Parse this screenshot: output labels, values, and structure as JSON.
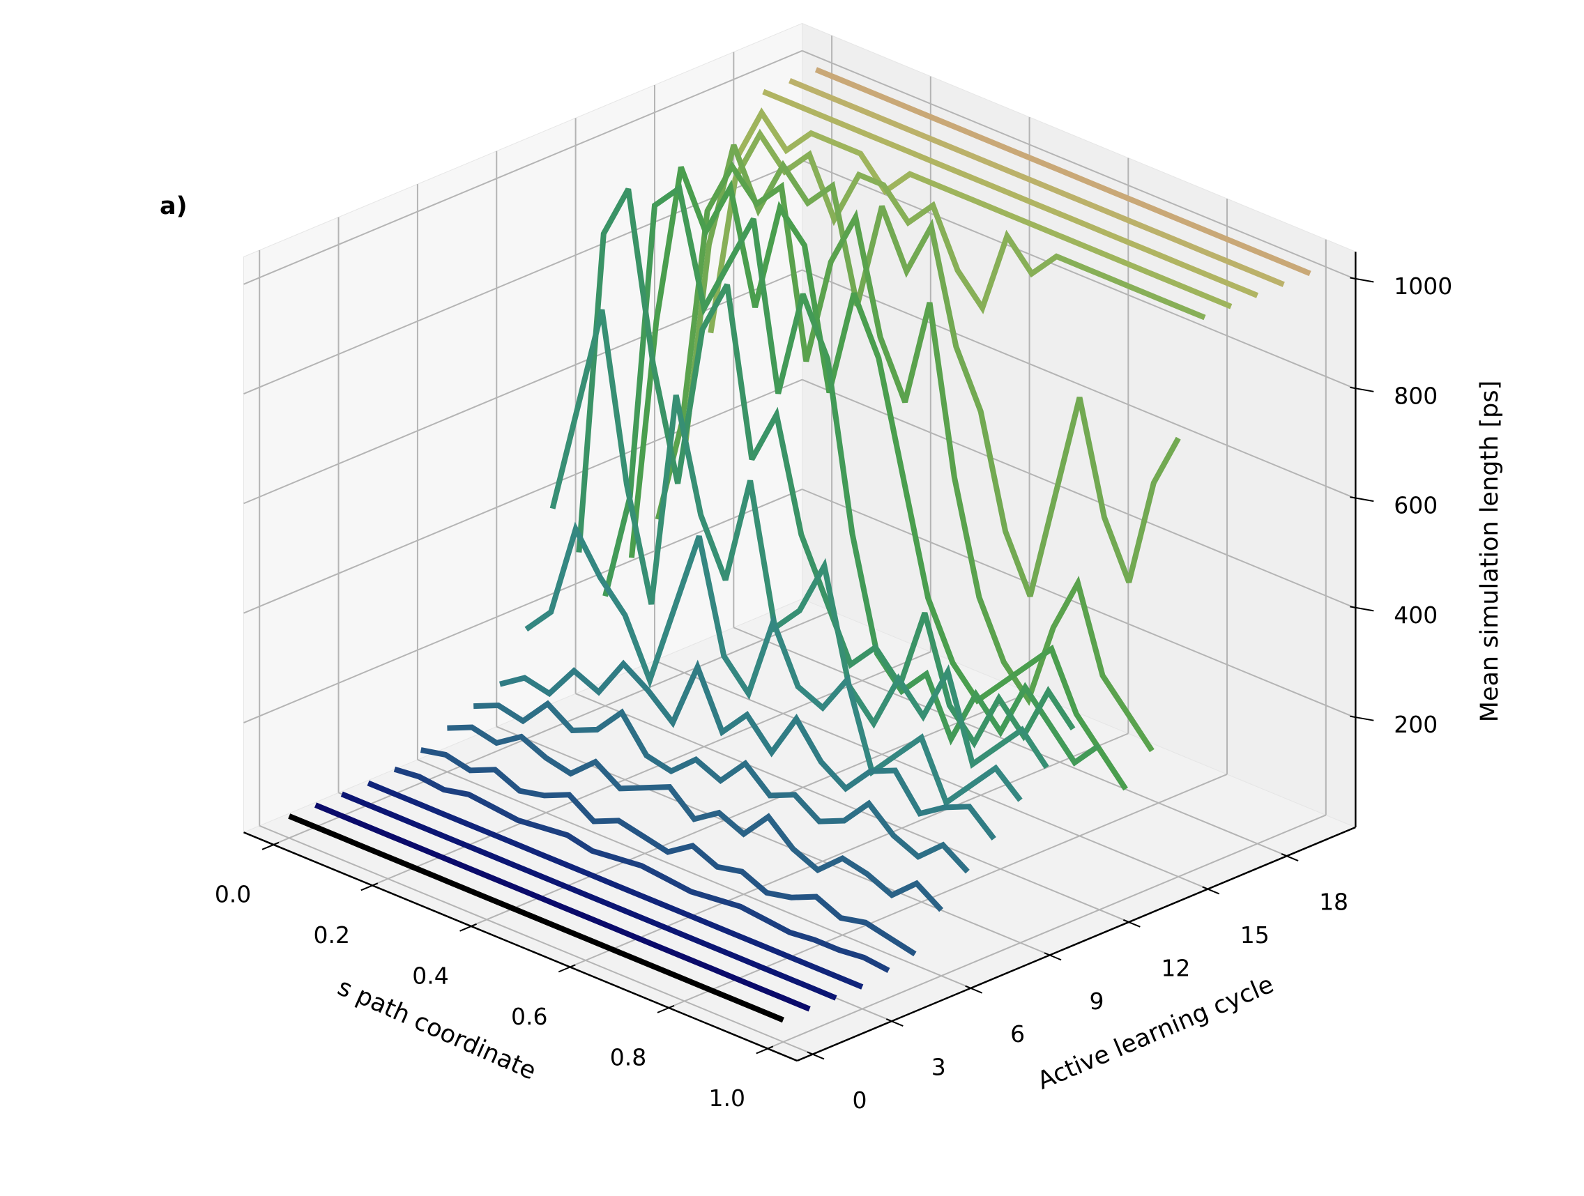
{
  "chart_data": {
    "type": "line3d",
    "panel_label": "a)",
    "xlabel": "s path coordinate",
    "ylabel": "Active learning cycle",
    "zlabel": "Mean simulation length [ps]",
    "xlim": [
      -0.06,
      1.06
    ],
    "ylim": [
      -0.6,
      20.6
    ],
    "zlim": [
      0,
      1050
    ],
    "xticks": [
      {
        "value": 0,
        "label": "0.0"
      },
      0.2,
      0.4,
      0.6,
      0.8,
      {
        "value": 1,
        "label": "1.0"
      }
    ],
    "yticks": [
      0,
      3,
      6,
      9,
      12,
      15,
      18
    ],
    "zticks": [
      200,
      400,
      600,
      800,
      1000
    ],
    "grid": true,
    "x": [
      0,
      0.05,
      0.1,
      0.15,
      0.2,
      0.25,
      0.3,
      0.35,
      0.4,
      0.45,
      0.5,
      0.55,
      0.6,
      0.65,
      0.7,
      0.75,
      0.8,
      0.85,
      0.9,
      0.95,
      1
    ],
    "cycles": [
      0,
      1,
      2,
      3,
      4,
      5,
      6,
      7,
      8,
      9,
      10,
      11,
      12,
      13,
      14,
      15,
      16,
      17,
      18,
      19,
      20
    ],
    "series": [
      {
        "color": "#000000",
        "values": [
          40,
          40,
          40,
          40,
          40,
          40,
          40,
          40,
          40,
          40,
          40,
          40,
          40,
          40,
          40,
          40,
          40,
          40,
          40,
          40,
          40
        ]
      },
      {
        "color": "#0a0a6a",
        "values": [
          40,
          40,
          40,
          40,
          40,
          40,
          40,
          40,
          40,
          40,
          40,
          40,
          40,
          40,
          40,
          40,
          40,
          40,
          40,
          40,
          40
        ]
      },
      {
        "color": "#0b1573",
        "values": [
          40,
          40,
          40,
          40,
          40,
          40,
          40,
          40,
          40,
          40,
          40,
          40,
          40,
          40,
          40,
          40,
          40,
          40,
          40,
          40,
          40
        ]
      },
      {
        "color": "#10247a",
        "values": [
          40,
          40,
          40,
          40,
          40,
          40,
          40,
          40,
          40,
          40,
          40,
          40,
          40,
          40,
          40,
          40,
          40,
          40,
          40,
          40,
          40
        ]
      },
      {
        "color": "#1c3f80",
        "values": [
          45,
          50,
          45,
          55,
          50,
          45,
          50,
          55,
          45,
          50,
          55,
          50,
          45,
          50,
          55,
          50,
          45,
          50,
          50,
          55,
          50
        ]
      },
      {
        "color": "#245484",
        "values": [
          60,
          70,
          60,
          80,
          60,
          70,
          90,
          60,
          80,
          70,
          60,
          90,
          70,
          80,
          60,
          70,
          90,
          70,
          80,
          70,
          60
        ]
      },
      {
        "color": "#2a6286",
        "values": [
          80,
          100,
          90,
          120,
          100,
          90,
          130,
          100,
          120,
          140,
          100,
          130,
          110,
          160,
          120,
          100,
          140,
          130,
          110,
          150,
          120
        ]
      },
      {
        "color": "#2d6f86",
        "values": [
          100,
          120,
          110,
          160,
          130,
          150,
          200,
          140,
          130,
          170,
          150,
          200,
          160,
          180,
          150,
          170,
          220,
          180,
          160,
          200,
          170
        ]
      },
      {
        "color": "#307c84",
        "values": [
          120,
          150,
          140,
          200,
          180,
          250,
          220,
          180,
          300,
          200,
          250,
          200,
          280,
          220,
          190,
          240,
          260,
          200,
          230,
          250,
          210
        ]
      },
      {
        "color": "#348781",
        "values": [
          200,
          250,
          420,
          350,
          300,
          200,
          350,
          500,
          300,
          250,
          400,
          300,
          280,
          350,
          200,
          250,
          300,
          200,
          250,
          300,
          260
        ]
      },
      {
        "color": "#378f74",
        "values": [
          400,
          600,
          800,
          500,
          300,
          700,
          500,
          400,
          600,
          350,
          400,
          500,
          300,
          250,
          350,
          300,
          400,
          250,
          300,
          350,
          300
        ]
      },
      {
        "color": "#3a9366",
        "values": [
          300,
          900,
          1000,
          700,
          500,
          800,
          900,
          600,
          700,
          500,
          400,
          300,
          350,
          300,
          450,
          300,
          250,
          350,
          300,
          400,
          350
        ]
      },
      {
        "color": "#429a57",
        "values": [
          200,
          400,
          950,
          1000,
          800,
          900,
          1000,
          700,
          900,
          800,
          500,
          300,
          250,
          300,
          200,
          300,
          250,
          350,
          300,
          250,
          300
        ]
      },
      {
        "color": "#4a9e4e",
        "values": [
          250,
          700,
          1000,
          900,
          1000,
          800,
          1000,
          950,
          700,
          900,
          800,
          600,
          400,
          300,
          250,
          300,
          350,
          400,
          300,
          250,
          200
        ]
      },
      {
        "color": "#5aa24d",
        "values": [
          300,
          500,
          900,
          1000,
          950,
          1000,
          700,
          900,
          1000,
          800,
          700,
          900,
          600,
          400,
          300,
          250,
          400,
          500,
          350,
          300,
          250
        ]
      },
      {
        "color": "#72a952",
        "values": [
          400,
          800,
          1000,
          900,
          1000,
          950,
          1000,
          800,
          1000,
          900,
          1000,
          800,
          700,
          500,
          400,
          600,
          800,
          600,
          500,
          700,
          800
        ]
      },
      {
        "color": "#87af57",
        "values": [
          600,
          900,
          1000,
          950,
          1000,
          900,
          1000,
          1000,
          950,
          1000,
          900,
          850,
          1000,
          950,
          1000,
          1000,
          1000,
          1000,
          1000,
          1000,
          1000
        ]
      },
      {
        "color": "#9eb45c",
        "values": [
          900,
          1000,
          950,
          1000,
          1000,
          1000,
          950,
          1000,
          1000,
          1000,
          1000,
          1000,
          1000,
          1000,
          1000,
          1000,
          1000,
          1000,
          1000,
          1000,
          1000
        ]
      },
      {
        "color": "#b0b462",
        "values": [
          1000,
          1000,
          1000,
          1000,
          1000,
          1000,
          1000,
          1000,
          1000,
          1000,
          1000,
          1000,
          1000,
          1000,
          1000,
          1000,
          1000,
          1000,
          1000,
          1000,
          1000
        ]
      },
      {
        "color": "#bbb16a",
        "values": [
          1000,
          1000,
          1000,
          1000,
          1000,
          1000,
          1000,
          1000,
          1000,
          1000,
          1000,
          1000,
          1000,
          1000,
          1000,
          1000,
          1000,
          1000,
          1000,
          1000,
          1000
        ]
      },
      {
        "color": "#c9a877",
        "values": [
          1000,
          1000,
          1000,
          1000,
          1000,
          1000,
          1000,
          1000,
          1000,
          1000,
          1000,
          1000,
          1000,
          1000,
          1000,
          1000,
          1000,
          1000,
          1000,
          1000,
          1000
        ]
      }
    ]
  }
}
